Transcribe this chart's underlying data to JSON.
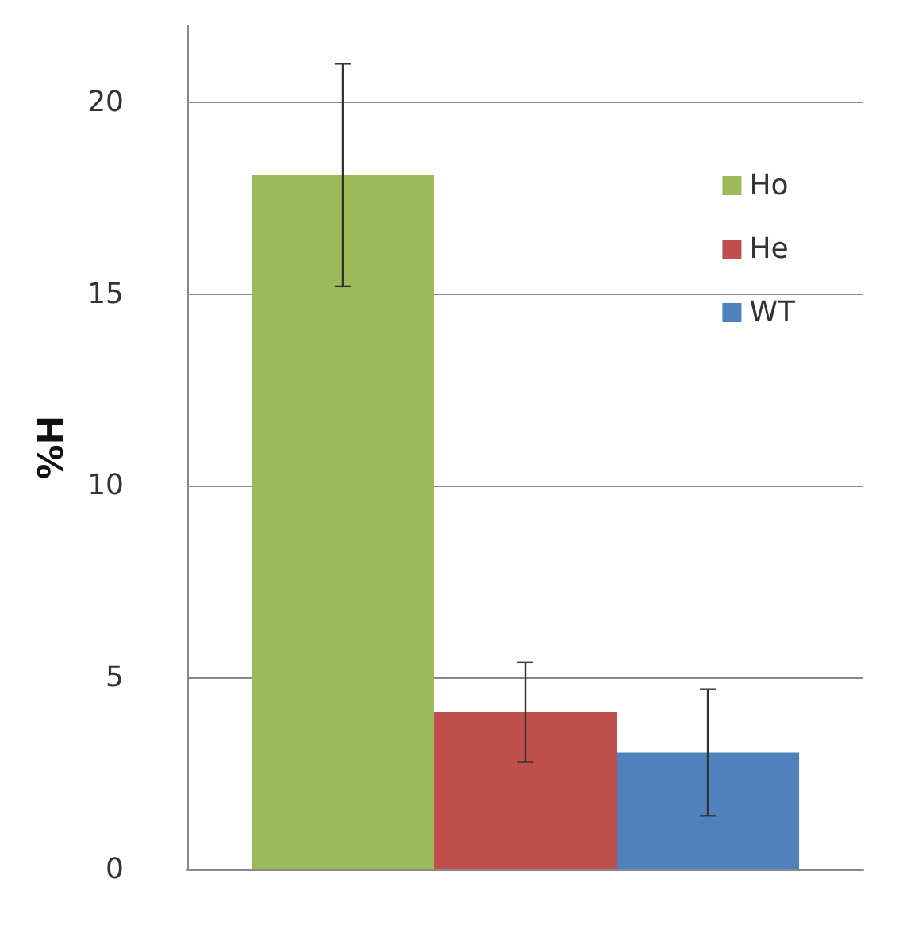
{
  "chart_data": {
    "type": "bar",
    "ylabel": "%H",
    "categories": [
      null
    ],
    "ylim": [
      0,
      22
    ],
    "yticks": [
      0,
      5,
      10,
      15,
      20
    ],
    "grid": "y",
    "legend": "top right",
    "series": [
      {
        "name": "Ho",
        "color": "#9bbb59",
        "values": [
          18.1
        ],
        "errors": [
          [
            15.2,
            21.0
          ]
        ]
      },
      {
        "name": "He",
        "color": "#c0504d",
        "values": [
          4.1
        ],
        "errors": [
          [
            2.8,
            5.4
          ]
        ]
      },
      {
        "name": "WT",
        "color": "#4f81bd",
        "values": [
          3.05
        ],
        "errors": [
          [
            1.4,
            4.7
          ]
        ]
      }
    ]
  }
}
